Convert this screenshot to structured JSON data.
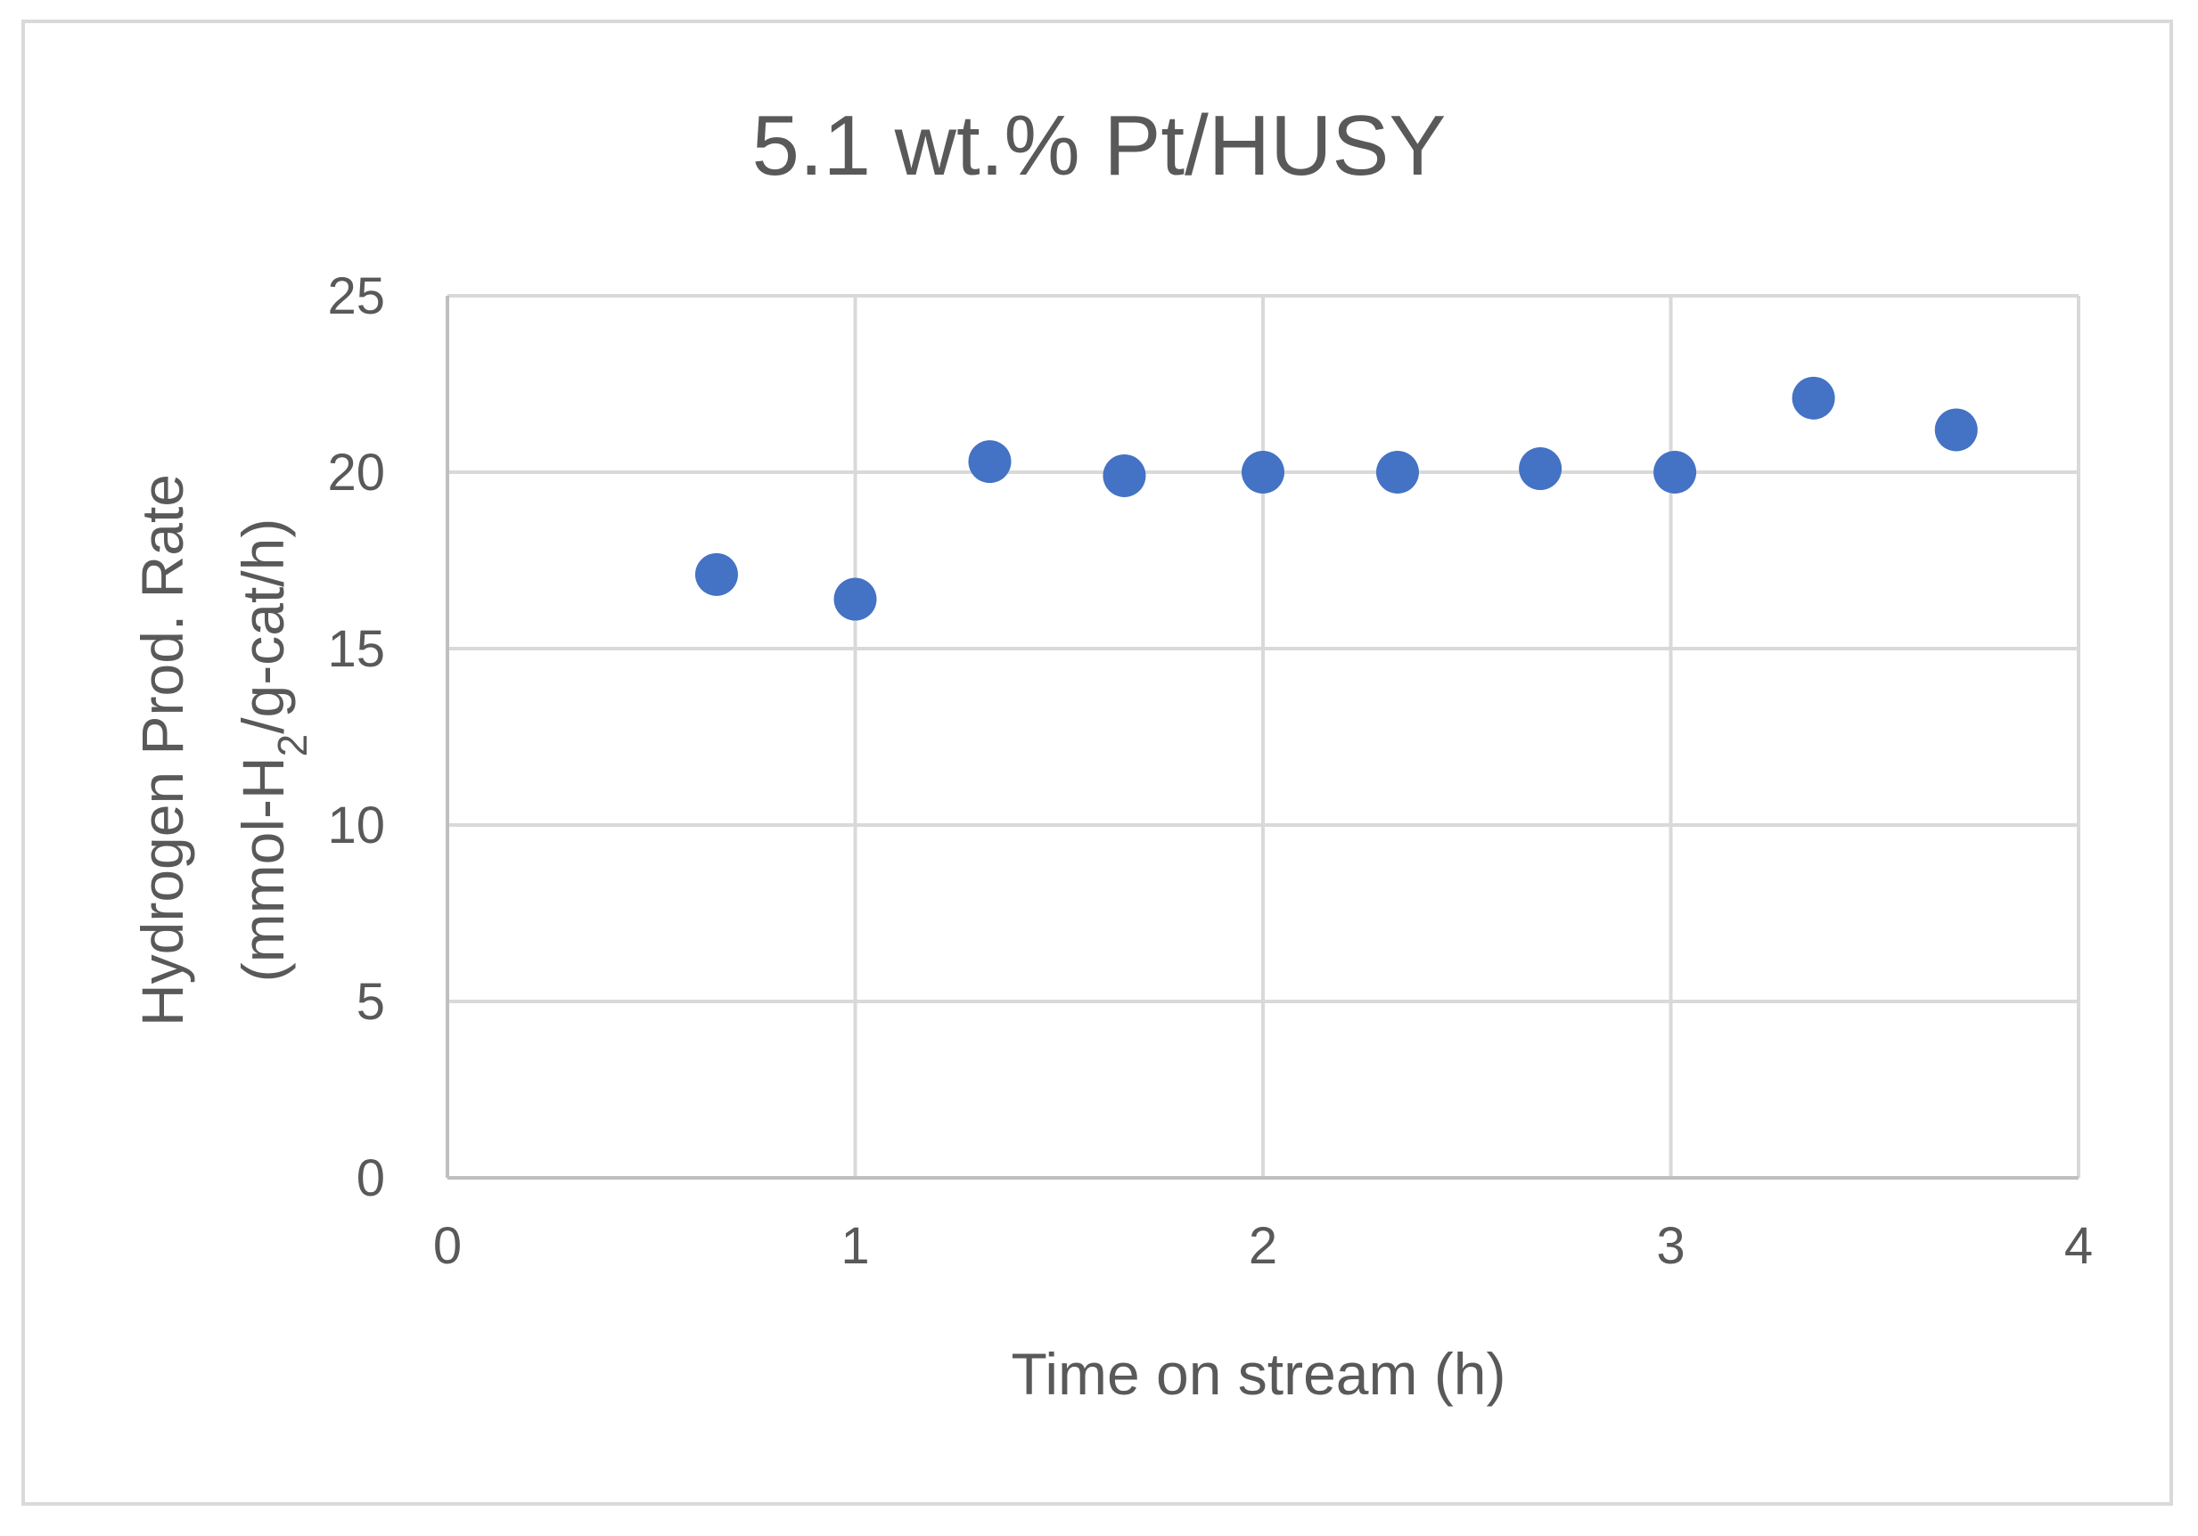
{
  "chart_data": {
    "type": "scatter",
    "title": "5.1 wt.% Pt/HUSY",
    "xlabel": "Time on stream (h)",
    "ylabel_line1": "Hydrogen Prod. Rate",
    "ylabel_line2_prefix": "(mmol-H",
    "ylabel_line2_subscript": "2",
    "ylabel_line2_suffix": "/g-cat/h)",
    "xlim": [
      0,
      4
    ],
    "ylim": [
      0,
      25
    ],
    "xticks": [
      0,
      1,
      2,
      3,
      4
    ],
    "yticks": [
      0,
      5,
      10,
      15,
      20,
      25
    ],
    "grid": true,
    "legend": "none",
    "marker_color": "#4472c4",
    "series": [
      {
        "x": [
          0.66,
          1.0,
          1.33,
          1.66,
          2.0,
          2.33,
          2.68,
          3.01,
          3.35,
          3.7
        ],
        "y": [
          17.1,
          16.4,
          20.3,
          19.9,
          20.0,
          20.0,
          20.1,
          20.0,
          22.1,
          21.2
        ]
      }
    ]
  }
}
